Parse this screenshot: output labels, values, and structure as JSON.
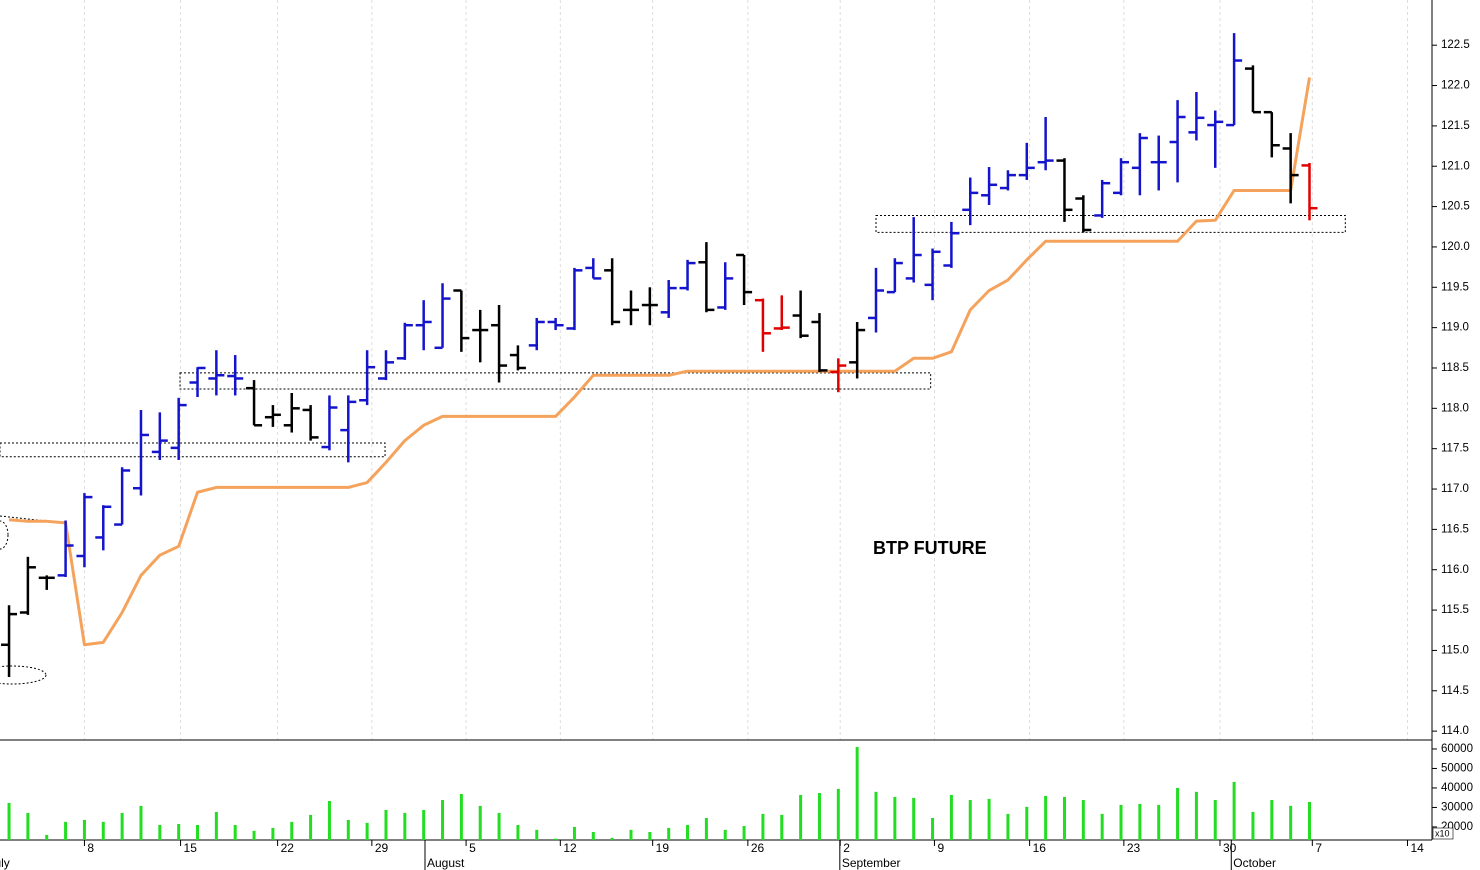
{
  "chart_data": [
    {
      "type": "ohlc",
      "title": "BTP FUTURE",
      "xlim": [
        -0.48,
        75.5
      ],
      "ylim": [
        113.89,
        123.06
      ],
      "yticks": [
        {
          "value": 114,
          "label": "114.0"
        },
        114.5,
        {
          "value": 115,
          "label": "115.0"
        },
        115.5,
        {
          "value": 116,
          "label": "116.0"
        },
        116.5,
        {
          "value": 117,
          "label": "117.0"
        },
        117.5,
        {
          "value": 118,
          "label": "118.0"
        },
        118.5,
        {
          "value": 119,
          "label": "119.0"
        },
        119.5,
        {
          "value": 120,
          "label": "120.0"
        },
        120.5,
        {
          "value": 121,
          "label": "121.0"
        },
        121.5,
        {
          "value": 122,
          "label": "122.0"
        },
        122.5
      ],
      "xticks": [
        {
          "value": 4,
          "label": "8"
        },
        {
          "value": 9.1,
          "label": "15"
        },
        {
          "value": 14.25,
          "label": "22"
        },
        {
          "value": 19.25,
          "label": "29"
        },
        {
          "value": 24.25,
          "label": "5"
        },
        {
          "value": 29.25,
          "label": "12"
        },
        {
          "value": 34.15,
          "label": "19"
        },
        {
          "value": 39.2,
          "label": "26"
        },
        {
          "value": 44.1,
          "label": "2"
        },
        {
          "value": 49.1,
          "label": "9"
        },
        {
          "value": 54.15,
          "label": "16"
        },
        {
          "value": 59.15,
          "label": "23"
        },
        {
          "value": 64.25,
          "label": "30"
        },
        {
          "value": 69.15,
          "label": "7"
        },
        {
          "value": 74.2,
          "label": "14"
        }
      ],
      "month_labels": [
        {
          "value": -1.2,
          "label": "July"
        },
        {
          "value": 22.07,
          "label": "August"
        },
        {
          "value": 44.08,
          "label": "September"
        },
        {
          "value": 64.85,
          "label": "October"
        }
      ],
      "grid": true,
      "open": [
        115.07,
        115.47,
        115.9,
        115.93,
        116.17,
        116.4,
        116.56,
        117.01,
        117.46,
        117.51,
        118.32,
        118.37,
        118.4,
        118.25,
        117.89,
        117.79,
        117.98,
        117.52,
        117.73,
        118.1,
        118.37,
        118.62,
        119.03,
        118.75,
        119.46,
        118.97,
        119.03,
        118.66,
        118.78,
        119.07,
        118.99,
        119.74,
        119.71,
        119.22,
        119.28,
        119.19,
        119.49,
        119.81,
        119.25,
        119.9,
        119.34,
        118.99,
        119.15,
        119.07,
        118.45,
        118.57,
        119.12,
        119.44,
        119.61,
        119.53,
        119.77,
        120.46,
        120.64,
        120.73,
        120.89,
        121.05,
        121.07,
        120.6,
        120.39,
        120.67,
        120.98,
        121.05,
        121.3,
        121.42,
        121.51,
        121.51,
        122.21,
        121.67,
        121.22,
        121.01
      ],
      "high": [
        115.56,
        116.16,
        115.93,
        116.61,
        116.95,
        116.8,
        117.27,
        117.98,
        117.95,
        118.13,
        118.51,
        118.72,
        118.66,
        118.35,
        118.04,
        118.19,
        118.04,
        118.16,
        118.16,
        118.72,
        118.72,
        119.06,
        119.34,
        119.55,
        119.46,
        119.22,
        119.28,
        118.78,
        119.12,
        119.12,
        119.74,
        119.86,
        119.86,
        119.46,
        119.5,
        119.59,
        119.84,
        120.06,
        119.81,
        119.9,
        119.36,
        119.4,
        119.46,
        119.18,
        118.62,
        119.07,
        119.74,
        119.86,
        120.37,
        119.98,
        120.31,
        120.86,
        120.99,
        120.95,
        121.29,
        121.61,
        121.1,
        120.64,
        120.83,
        121.1,
        121.41,
        121.38,
        121.82,
        121.92,
        121.69,
        122.65,
        122.25,
        121.67,
        121.41,
        121.04
      ],
      "low": [
        114.67,
        115.44,
        115.75,
        115.91,
        116.03,
        116.24,
        116.56,
        116.92,
        117.36,
        117.36,
        118.14,
        118.16,
        118.16,
        117.79,
        117.77,
        117.7,
        117.6,
        117.48,
        117.33,
        118.04,
        118.35,
        118.6,
        118.72,
        118.75,
        118.7,
        118.57,
        118.32,
        118.47,
        118.72,
        118.97,
        118.97,
        119.61,
        119.03,
        119.03,
        119.03,
        119.12,
        119.46,
        119.19,
        119.22,
        119.28,
        118.7,
        118.97,
        118.87,
        118.45,
        118.2,
        118.37,
        118.94,
        119.44,
        119.56,
        119.34,
        119.74,
        120.27,
        120.52,
        120.7,
        120.83,
        120.95,
        120.31,
        120.18,
        120.36,
        120.64,
        120.64,
        120.7,
        120.8,
        121.32,
        120.98,
        121.51,
        121.67,
        121.11,
        120.54,
        120.33
      ],
      "close": [
        115.45,
        116.03,
        115.9,
        116.3,
        116.9,
        116.78,
        117.23,
        117.67,
        117.6,
        118.04,
        118.5,
        118.41,
        118.37,
        117.79,
        117.92,
        118.0,
        117.64,
        118.01,
        118.08,
        118.51,
        118.57,
        119.03,
        119.07,
        119.36,
        118.87,
        118.97,
        118.53,
        118.5,
        119.07,
        119.03,
        119.71,
        119.61,
        119.07,
        119.22,
        119.28,
        119.49,
        119.8,
        119.22,
        119.61,
        119.44,
        118.93,
        119.0,
        118.9,
        118.47,
        118.53,
        118.97,
        119.46,
        119.8,
        119.9,
        119.94,
        120.17,
        120.67,
        120.77,
        120.89,
        120.98,
        121.07,
        120.46,
        120.21,
        120.79,
        121.05,
        121.35,
        121.05,
        121.61,
        121.6,
        121.55,
        122.31,
        121.67,
        121.26,
        120.89,
        120.48
      ],
      "colors": [
        "#000000",
        "#000000",
        "#000000",
        "#1414cc",
        "#1414cc",
        "#1414cc",
        "#1414cc",
        "#1414cc",
        "#1414cc",
        "#1414cc",
        "#1414cc",
        "#1414cc",
        "#1414cc",
        "#000000",
        "#000000",
        "#000000",
        "#000000",
        "#1414cc",
        "#1414cc",
        "#1414cc",
        "#1414cc",
        "#1414cc",
        "#1414cc",
        "#1414cc",
        "#000000",
        "#000000",
        "#000000",
        "#000000",
        "#1414cc",
        "#1414cc",
        "#1414cc",
        "#1414cc",
        "#000000",
        "#000000",
        "#000000",
        "#1414cc",
        "#1414cc",
        "#000000",
        "#1414cc",
        "#000000",
        "#e00000",
        "#e00000",
        "#000000",
        "#000000",
        "#e00000",
        "#000000",
        "#1414cc",
        "#1414cc",
        "#1414cc",
        "#1414cc",
        "#1414cc",
        "#1414cc",
        "#1414cc",
        "#1414cc",
        "#1414cc",
        "#1414cc",
        "#000000",
        "#000000",
        "#1414cc",
        "#1414cc",
        "#1414cc",
        "#1414cc",
        "#1414cc",
        "#1414cc",
        "#1414cc",
        "#1414cc",
        "#000000",
        "#000000",
        "#000000",
        "#e00000"
      ],
      "stop": {
        "color": "#f5a35c",
        "values": [
          116.62,
          116.6,
          116.6,
          116.58,
          115.07,
          115.1,
          115.47,
          115.93,
          116.18,
          116.29,
          116.96,
          117.02,
          117.02,
          117.02,
          117.02,
          117.02,
          117.02,
          117.02,
          117.02,
          117.08,
          117.33,
          117.6,
          117.79,
          117.9,
          117.9,
          117.9,
          117.9,
          117.9,
          117.9,
          117.9,
          118.14,
          118.41,
          118.41,
          118.41,
          118.41,
          118.41,
          118.46,
          118.46,
          118.46,
          118.46,
          118.46,
          118.46,
          118.46,
          118.46,
          118.46,
          118.46,
          118.46,
          118.46,
          118.62,
          118.62,
          118.7,
          119.22,
          119.46,
          119.59,
          119.84,
          120.07,
          120.07,
          120.07,
          120.07,
          120.07,
          120.07,
          120.07,
          120.07,
          120.32,
          120.33,
          120.7,
          120.7,
          120.7,
          120.7,
          122.1
        ]
      },
      "boxes": [
        {
          "x": [
            -0.48,
            19.95
          ],
          "y": [
            117.4,
            117.57
          ]
        },
        {
          "x": [
            9.07,
            48.9
          ],
          "y": [
            118.24,
            118.44
          ]
        },
        {
          "x": [
            46,
            70.9
          ],
          "y": [
            120.18,
            120.39
          ]
        }
      ]
    },
    {
      "type": "bar",
      "color": "#22dd22",
      "unit_label": "x10",
      "xlim": [
        -0.48,
        75.5
      ],
      "ylim": [
        13300,
        64600
      ],
      "yticks": [
        20000,
        30000,
        40000,
        50000,
        60000
      ],
      "values": [
        32300,
        27200,
        15900,
        22600,
        23600,
        22600,
        27200,
        30800,
        21000,
        21500,
        21000,
        27700,
        21000,
        18000,
        19500,
        22600,
        26200,
        33300,
        23600,
        22100,
        28700,
        27200,
        28700,
        33800,
        36900,
        30800,
        27200,
        21000,
        18500,
        14000,
        20000,
        17400,
        14400,
        18500,
        17400,
        19500,
        21000,
        24600,
        18500,
        20500,
        26700,
        26200,
        36400,
        37400,
        39500,
        61000,
        38000,
        35400,
        34900,
        24600,
        36400,
        33800,
        34400,
        26700,
        30300,
        35900,
        35400,
        33800,
        26700,
        31300,
        31800,
        31300,
        40000,
        38000,
        33800,
        43100,
        27700,
        33800,
        30800,
        32800
      ]
    }
  ]
}
